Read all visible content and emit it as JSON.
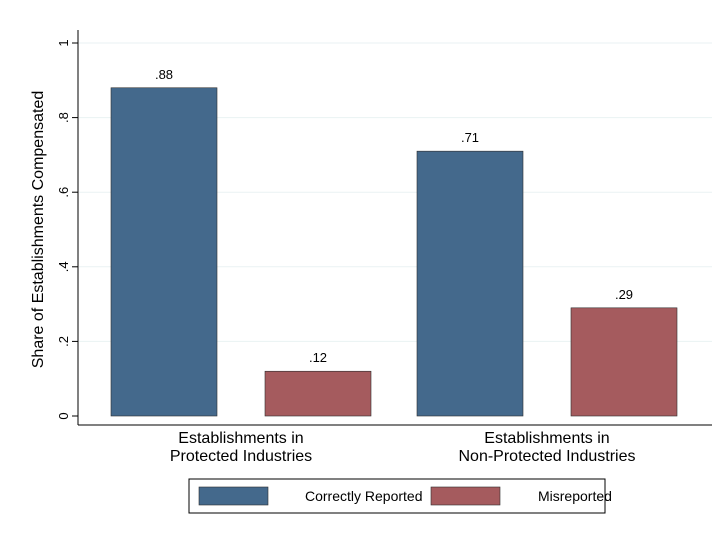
{
  "chart_data": {
    "type": "bar",
    "title": "",
    "xlabel": "",
    "ylabel": "Share of Establishments Compensated",
    "ylim": [
      0,
      1
    ],
    "yticks": [
      0,
      0.2,
      0.4,
      0.6,
      0.8,
      1
    ],
    "ytick_labels": [
      "0",
      ".2",
      ".4",
      ".6",
      ".8",
      "1"
    ],
    "grid": true,
    "legend_position": "bottom",
    "groups": [
      {
        "label_lines": [
          "Establishments in",
          "Protected Industries"
        ]
      },
      {
        "label_lines": [
          "Establishments in",
          "Non-Protected Industries"
        ]
      }
    ],
    "series": [
      {
        "name": "Correctly Reported",
        "color": "#44698C",
        "values": [
          0.88,
          0.71
        ],
        "value_labels": [
          ".88",
          ".71"
        ]
      },
      {
        "name": "Misreported",
        "color": "#A55B5E",
        "values": [
          0.12,
          0.29
        ],
        "value_labels": [
          ".12",
          ".29"
        ]
      }
    ]
  }
}
